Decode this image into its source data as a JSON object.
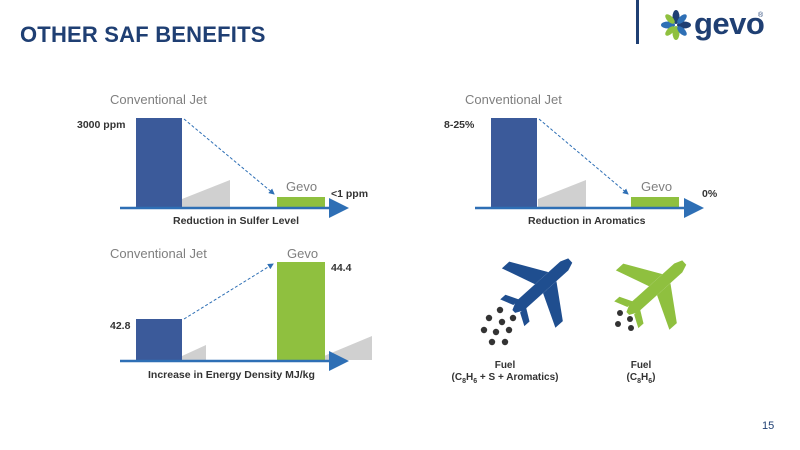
{
  "slide": {
    "title": "OTHER SAF BENEFITS",
    "page_number": "15"
  },
  "logo": {
    "text": "gevo",
    "reg": "®"
  },
  "colors": {
    "navy": "#1f3f73",
    "blue_bar": "#3b5a9a",
    "green": "#8fc03f",
    "shadow": "#d0d0d0",
    "axis": "#2e6fb5"
  },
  "panels": {
    "sulfur": {
      "conventional_label": "Conventional Jet",
      "gevo_label": "Gevo",
      "conventional_value": "3000 ppm",
      "gevo_value": "<1 ppm",
      "caption": "Reduction in Sulfer Level"
    },
    "aromatics": {
      "conventional_label": "Conventional Jet",
      "gevo_label": "Gevo",
      "conventional_value": "8-25%",
      "gevo_value": "0%",
      "caption": "Reduction in Aromatics"
    },
    "energy": {
      "conventional_label": "Conventional Jet",
      "gevo_label": "Gevo",
      "conventional_value": "42.8",
      "gevo_value": "44.4",
      "caption": "Increase in Energy Density MJ/kg"
    }
  },
  "fuels": {
    "conventional": {
      "line1": "Fuel",
      "line2_parts": [
        "(C",
        "8",
        "H",
        "6",
        " + S + Aromatics)"
      ]
    },
    "gevo": {
      "line1": "Fuel",
      "line2_parts": [
        "(C",
        "8",
        "H",
        "6",
        ")"
      ]
    }
  }
}
